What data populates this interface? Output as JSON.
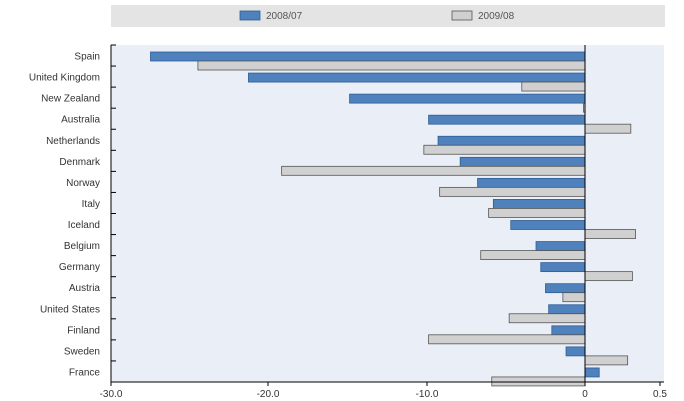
{
  "chart_data": {
    "type": "bar",
    "orientation": "horizontal",
    "categories": [
      "Spain",
      "United Kingdom",
      "New Zealand",
      "Australia",
      "Netherlands",
      "Denmark",
      "Norway",
      "Italy",
      "Iceland",
      "Belgium",
      "Germany",
      "Austria",
      "United States",
      "Finland",
      "Sweden",
      "France"
    ],
    "series": [
      {
        "name": "2008/07",
        "color": "#4f81bd",
        "values": [
          -27.5,
          -21.3,
          -14.9,
          -9.9,
          -9.3,
          -7.9,
          -6.8,
          -5.8,
          -4.7,
          -3.1,
          -2.8,
          -2.5,
          -2.3,
          -2.1,
          -1.2,
          0.9
        ]
      },
      {
        "name": "2009/08",
        "color": "#d0d0d0",
        "values": [
          -24.5,
          -4.0,
          -0.1,
          2.9,
          -10.2,
          -19.2,
          -9.2,
          -6.1,
          3.2,
          -6.6,
          3.0,
          -1.4,
          -4.8,
          -9.9,
          2.7,
          -5.9
        ]
      }
    ],
    "x_tick_labels": [
      "-30.0",
      "-20.0",
      "-10.0",
      "0",
      "0.5"
    ],
    "xlim": [
      -30,
      5
    ],
    "legend_position": "top",
    "grid": false,
    "colors": {
      "plot_background": "#eaeef7",
      "legend_background": "#e4e4e4",
      "series1_edge": "#2f5d95",
      "series2_edge": "#555555"
    }
  }
}
